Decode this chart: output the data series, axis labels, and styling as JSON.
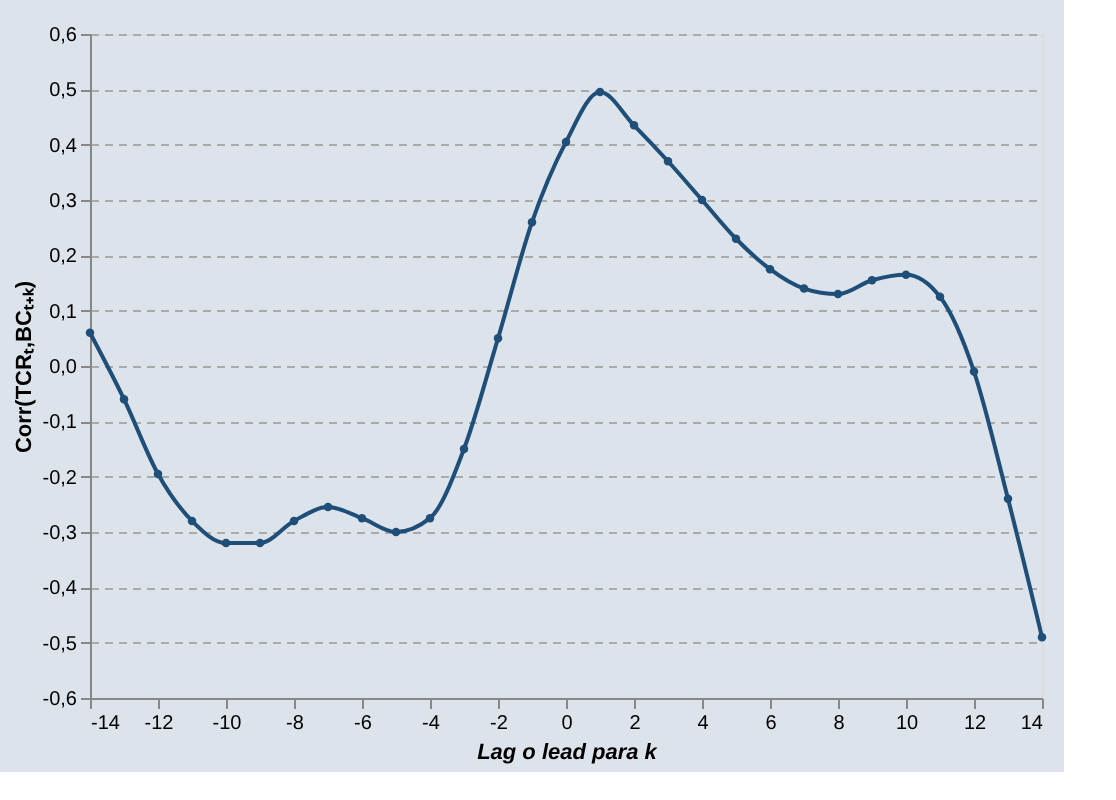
{
  "chart_data": {
    "type": "line",
    "xlabel": "Lag o lead para k",
    "ylabel": "Corr(TCRₜ,BCₜ₊ₖ)",
    "x": [
      -14,
      -13,
      -12,
      -11,
      -10,
      -9,
      -8,
      -7,
      -6,
      -5,
      -4,
      -3,
      -2,
      -1,
      0,
      1,
      2,
      3,
      4,
      5,
      6,
      7,
      8,
      9,
      10,
      11,
      12,
      13,
      14
    ],
    "series": [
      {
        "color": "#1f4e79",
        "values": [
          0.06,
          -0.06,
          -0.195,
          -0.28,
          -0.32,
          -0.32,
          -0.28,
          -0.255,
          -0.275,
          -0.3,
          -0.275,
          -0.15,
          0.05,
          0.26,
          0.405,
          0.495,
          0.435,
          0.37,
          0.3,
          0.23,
          0.175,
          0.14,
          0.13,
          0.155,
          0.165,
          0.125,
          -0.01,
          -0.24,
          -0.49
        ]
      }
    ],
    "xlim": [
      -14,
      14
    ],
    "xticks": [
      -14,
      -12,
      -10,
      -8,
      -6,
      -4,
      -2,
      0,
      2,
      4,
      6,
      8,
      10,
      12,
      14
    ],
    "ylim": [
      -0.6,
      0.6
    ],
    "yticks": [
      {
        "value": -0.6,
        "label": "-0,6"
      },
      {
        "value": -0.5,
        "label": "-0,5"
      },
      {
        "value": -0.4,
        "label": "-0,4"
      },
      {
        "value": -0.3,
        "label": "-0,3"
      },
      {
        "value": -0.2,
        "label": "-0,2"
      },
      {
        "value": -0.1,
        "label": "-0,1"
      },
      {
        "value": 0.0,
        "label": "0,0"
      },
      {
        "value": 0.1,
        "label": "0,1"
      },
      {
        "value": 0.2,
        "label": "0,2"
      },
      {
        "value": 0.3,
        "label": "0,3"
      },
      {
        "value": 0.4,
        "label": "0,4"
      },
      {
        "value": 0.5,
        "label": "0,5"
      },
      {
        "value": 0.6,
        "label": "0,6"
      }
    ],
    "grid": "y",
    "marker": "circle",
    "line_style": "solid"
  }
}
